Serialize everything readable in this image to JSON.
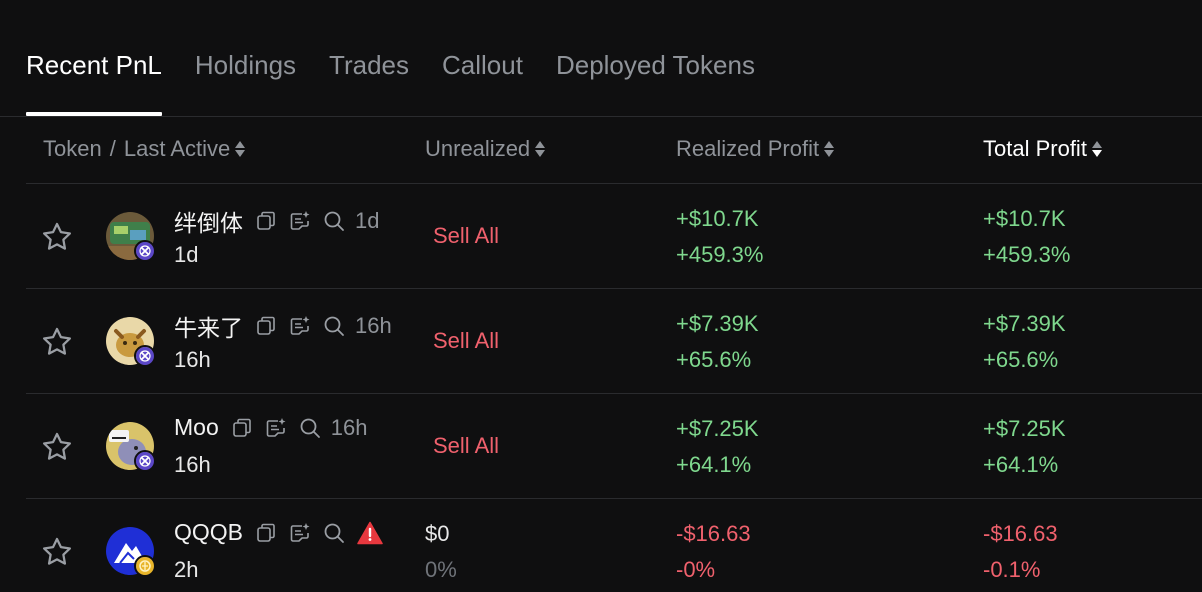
{
  "tabs": [
    {
      "label": "Recent PnL",
      "active": true
    },
    {
      "label": "Holdings",
      "active": false
    },
    {
      "label": "Trades",
      "active": false
    },
    {
      "label": "Callout",
      "active": false
    },
    {
      "label": "Deployed Tokens",
      "active": false
    }
  ],
  "header": {
    "token": "Token",
    "slash": "/",
    "last_active": "Last Active",
    "unrealized": "Unrealized",
    "realized_profit": "Realized Profit",
    "total_profit": "Total Profit"
  },
  "rows": [
    {
      "name": "绊倒体",
      "age": "1d",
      "last_active": "1d",
      "action": "Sell All",
      "realized_value": "+$10.7K",
      "realized_pct": "+459.3%",
      "total_value": "+$10.7K",
      "total_pct": "+459.3%"
    },
    {
      "name": "牛来了",
      "age": "16h",
      "last_active": "16h",
      "action": "Sell All",
      "realized_value": "+$7.39K",
      "realized_pct": "+65.6%",
      "total_value": "+$7.39K",
      "total_pct": "+65.6%"
    },
    {
      "name": "Moo",
      "age": "16h",
      "last_active": "16h",
      "action": "Sell All",
      "realized_value": "+$7.25K",
      "realized_pct": "+64.1%",
      "total_value": "+$7.25K",
      "total_pct": "+64.1%"
    },
    {
      "name": "QQQB",
      "last_active": "2h",
      "unrealized_value": "$0",
      "unrealized_pct": "0%",
      "realized_value": "-$16.63",
      "realized_pct": "-0%",
      "total_value": "-$16.63",
      "total_pct": "-0.1%"
    }
  ],
  "colors": {
    "positive": "#7fd88e",
    "negative": "#f0616d",
    "muted": "#8f9399",
    "background": "#0f0f10"
  },
  "icons": [
    "star-icon",
    "copy-icon",
    "note-sparkle-icon",
    "search-icon",
    "warning-icon",
    "chain-badge-icon"
  ]
}
